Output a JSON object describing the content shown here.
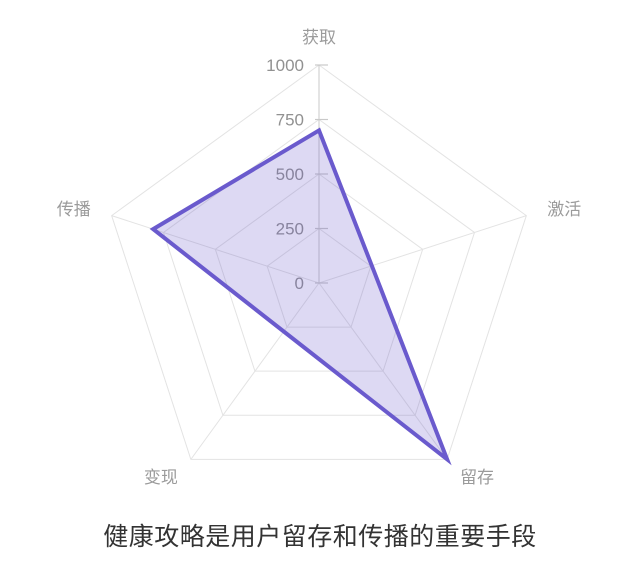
{
  "page": {
    "background": "#ffffff"
  },
  "chart_data": {
    "type": "radar",
    "title": "健康攻略是用户留存和传播的重要手段",
    "categories": [
      "获取",
      "激活",
      "留存",
      "变现",
      "传播"
    ],
    "values": [
      700,
      255,
      1000,
      275,
      800
    ],
    "max": 1000,
    "ticks": [
      0,
      250,
      500,
      750,
      1000
    ],
    "grid": true,
    "legend_position": "none",
    "colors": {
      "line": "#6A5ACD",
      "fill": "rgba(106,90,205,0.23)",
      "grid_line": "#E3E3E3",
      "axis_line": "#C9C9C9",
      "axis_label": "#9B9B9B",
      "tick_label": "#919191",
      "title": "#333333"
    }
  }
}
